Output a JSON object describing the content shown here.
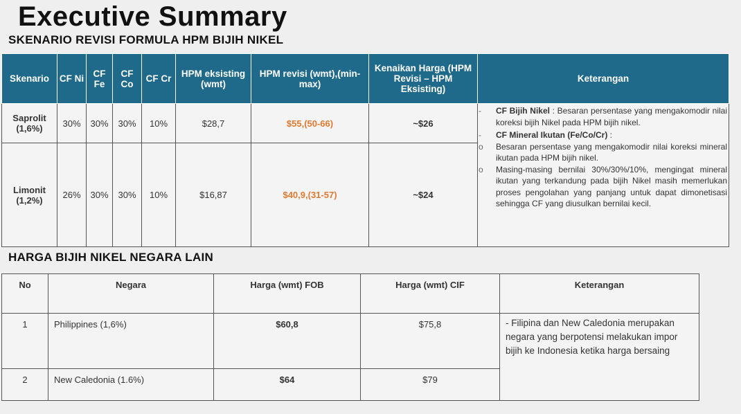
{
  "title": "Executive Summary",
  "subtitle": "SKENARIO REVISI FORMULA HPM BIJIH NIKEL",
  "scenario_table": {
    "headers": [
      "Skenario",
      "CF Ni",
      "CF Fe",
      "CF Co",
      "CF Cr",
      "HPM eksisting (wmt)",
      "HPM revisi (wmt),(min-max)",
      "Kenaikan Harga (HPM Revisi – HPM Eksisting)",
      "Keterangan"
    ],
    "rows": [
      {
        "skenario": "Saprolit (1,6%)",
        "cf_ni": "30%",
        "cf_fe": "30%",
        "cf_co": "30%",
        "cf_cr": "10%",
        "hpm_eksisting": "$28,7",
        "hpm_revisi": "$55,(50-66)",
        "kenaikan": "~$26"
      },
      {
        "skenario": "Limonit (1,2%)",
        "cf_ni": "26%",
        "cf_fe": "30%",
        "cf_co": "30%",
        "cf_cr": "10%",
        "hpm_eksisting": "$16,87",
        "hpm_revisi": "$40,9,(31-57)",
        "kenaikan": "~$24"
      }
    ],
    "keterangan": {
      "b1_label": "CF Bijih Nikel",
      "b1_text": " : Besaran persentase yang mengakomodir nilai koreksi bijih Nikel pada HPM bijih nikel.",
      "b2_label": "CF Mineral Ikutan (Fe/Co/Cr)",
      "b2_text": " :",
      "s1": "Besaran persentase yang mengakomodir nilai koreksi mineral ikutan pada HPM bijih nikel.",
      "s2": "Masing-masing bernilai 30%/30%/10%, mengingat mineral ikutan yang terkandung pada bijih Nikel masih memerlukan proses pengolahan yang panjang untuk dapat dimonetisasi sehingga CF yang diusulkan bernilai kecil.",
      "dash": "-",
      "circle": "o"
    }
  },
  "section2_title": "HARGA BIJIH NIKEL NEGARA LAIN",
  "country_table": {
    "headers": [
      "No",
      "Negara",
      "Harga (wmt) FOB",
      "Harga (wmt) CIF",
      "Keterangan"
    ],
    "rows": [
      {
        "no": "1",
        "negara": "Philippines (1,6%)",
        "fob": "$60,8",
        "cif": "$75,8"
      },
      {
        "no": "2",
        "negara": "New Caledonia (1.6%)",
        "fob": "$64",
        "cif": "$79"
      }
    ],
    "keterangan": "- Filipina dan New Caledonia merupakan negara yang berpotensi melakukan impor bijih ke Indonesia ketika harga bersaing"
  },
  "colors": {
    "header": "#1f6a8a",
    "highlight": "#e0792f"
  }
}
